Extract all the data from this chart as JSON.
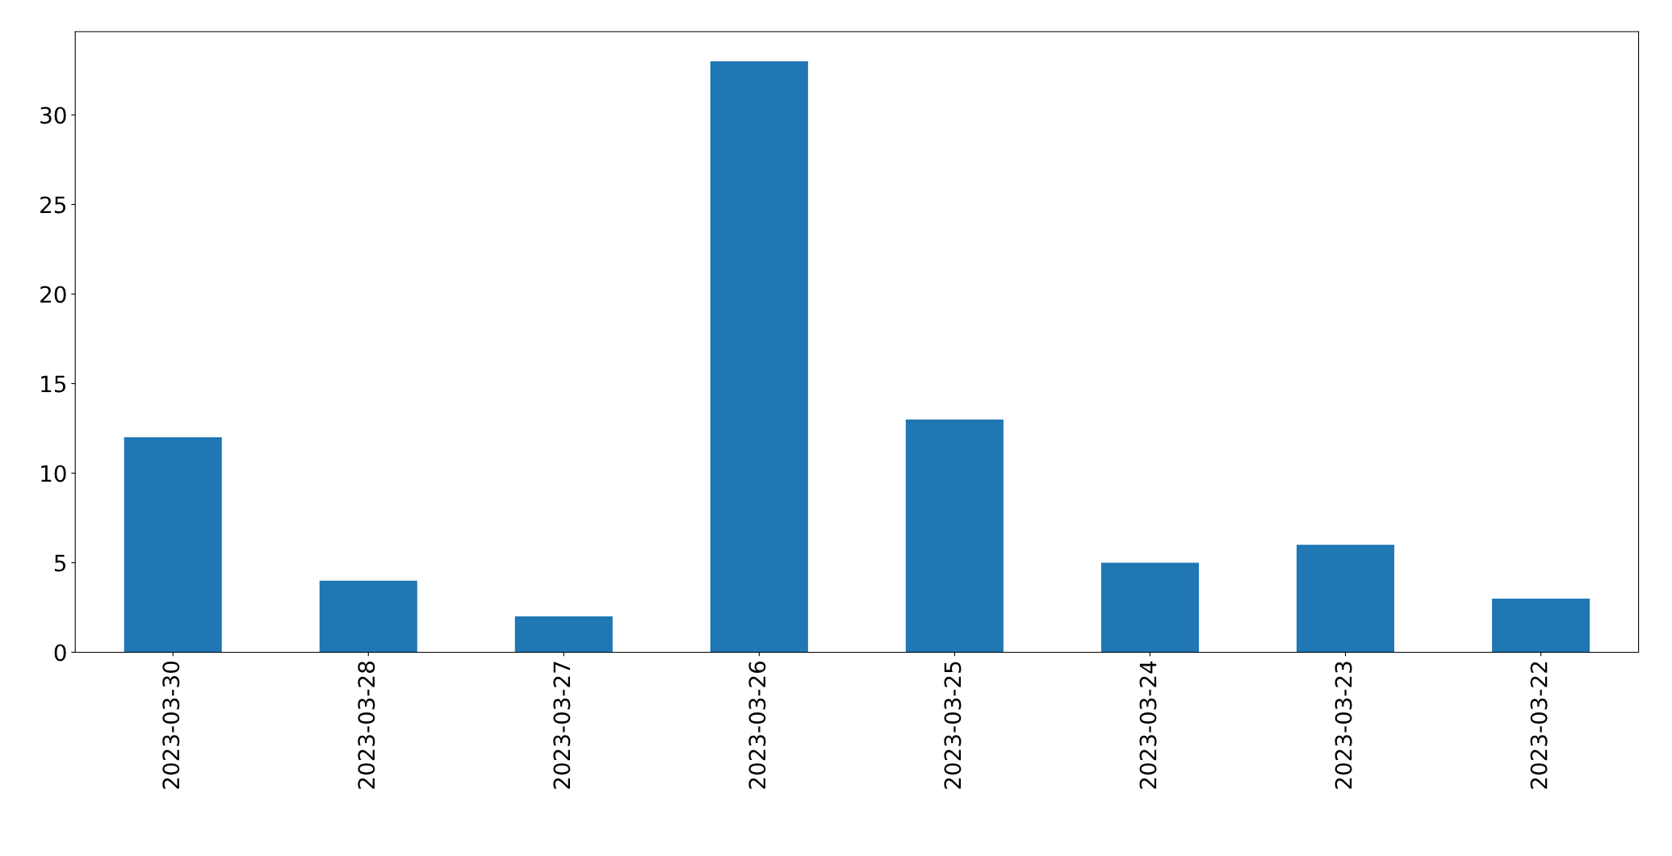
{
  "chart_data": {
    "type": "bar",
    "categories": [
      "2023-03-30",
      "2023-03-28",
      "2023-03-27",
      "2023-03-26",
      "2023-03-25",
      "2023-03-24",
      "2023-03-23",
      "2023-03-22"
    ],
    "values": [
      12,
      4,
      2,
      33,
      13,
      5,
      6,
      3
    ],
    "color": "#1f77b4",
    "ylim": [
      0,
      34.65
    ],
    "yticks": [
      0,
      5,
      10,
      15,
      20,
      25,
      30
    ],
    "grid": false,
    "legend": false
  }
}
